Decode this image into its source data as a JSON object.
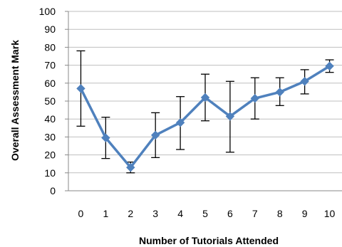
{
  "chart_data": {
    "type": "line",
    "title": "",
    "xlabel": "Number of Tutorials Attended",
    "ylabel": "Overall Assessment Mark",
    "x": [
      0,
      1,
      2,
      3,
      4,
      5,
      6,
      7,
      8,
      9,
      10
    ],
    "x_tick_labels": [
      "0",
      "1",
      "2",
      "3",
      "4",
      "5",
      "6",
      "7",
      "8",
      "9",
      "10"
    ],
    "y_tick_labels": [
      "0",
      "10",
      "20",
      "30",
      "40",
      "50",
      "60",
      "70",
      "80",
      "90",
      "100"
    ],
    "ylim": [
      0,
      100
    ],
    "xlim": [
      -0.5,
      10.5
    ],
    "grid": "horizontal",
    "legend": "none",
    "series": [
      {
        "values": [
          57,
          29.5,
          13,
          31,
          38,
          52,
          41.5,
          51.5,
          55,
          61,
          69.5
        ],
        "error_low": [
          36,
          18,
          10,
          18.5,
          23,
          39,
          21.5,
          40,
          47.5,
          54,
          66
        ],
        "error_high": [
          78,
          41,
          16,
          43.5,
          52.5,
          65,
          61,
          63,
          63,
          67.5,
          73
        ],
        "color": "#4F81BD",
        "marker": "diamond"
      }
    ],
    "error_bar_color": "#000000",
    "grid_color": "#BFBFBF",
    "axis_color": "#888888"
  }
}
